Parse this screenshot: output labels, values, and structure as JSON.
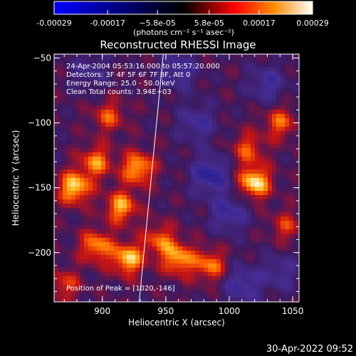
{
  "chart_data": {
    "type": "heatmap",
    "title": "Reconstructed RHESSI Image",
    "xlabel": "Heliocentric X (arcsec)",
    "ylabel": "Heliocentric Y (arcsec)",
    "xlim": [
      862,
      1055
    ],
    "ylim": [
      -238,
      -47
    ],
    "x_ticks": [
      900,
      950,
      1000,
      1050
    ],
    "y_ticks": [
      -50,
      -100,
      -150,
      -200
    ],
    "x_tick_labels": [
      "900",
      "950",
      "1000",
      "1050"
    ],
    "y_tick_labels": [
      "−50",
      "−100",
      "−150",
      "−200"
    ],
    "colorbar": {
      "ticks": [
        -0.00029,
        -0.00017,
        -5.8e-05,
        5.8e-05,
        0.00017,
        0.00029
      ],
      "tick_labels": [
        "-0.00029",
        "-0.00017",
        "−5.8e-05",
        "5.8e-05",
        "0.00017",
        "0.00029"
      ],
      "unit_label": "(photons cm⁻² s⁻¹ asec⁻²)",
      "colors": [
        "#0000ff",
        "#ff0000",
        "#ff8c00",
        "#ffffff"
      ]
    },
    "annotations": [
      "24-Apr-2004 05:53:16.000 to 05:57:20.000",
      "Detectors: 3F 4F 5F 6F 7F 8F, Att 0",
      "Energy Range: 25.0 - 50.0 keV",
      "Clean     Total counts: 3.94E+03"
    ],
    "peak_label": "Position of Peak = [1020,-146]",
    "peak": [
      1020,
      -146
    ],
    "limb_line": [
      [
        929,
        -238
      ],
      [
        948,
        -47
      ]
    ],
    "hot_spots": [
      {
        "x": 878,
        "y": -150,
        "intensity": 0.95
      },
      {
        "x": 895,
        "y": -130,
        "intensity": 0.7
      },
      {
        "x": 905,
        "y": -95,
        "intensity": 0.55
      },
      {
        "x": 915,
        "y": -165,
        "intensity": 0.8
      },
      {
        "x": 928,
        "y": -135,
        "intensity": 0.85
      },
      {
        "x": 895,
        "y": -195,
        "intensity": 0.75
      },
      {
        "x": 920,
        "y": -205,
        "intensity": 0.9
      },
      {
        "x": 945,
        "y": -190,
        "intensity": 0.6
      },
      {
        "x": 960,
        "y": -205,
        "intensity": 0.8
      },
      {
        "x": 985,
        "y": -210,
        "intensity": 0.7
      },
      {
        "x": 1020,
        "y": -146,
        "intensity": 1.0
      },
      {
        "x": 1015,
        "y": -120,
        "intensity": 0.55
      },
      {
        "x": 1040,
        "y": -100,
        "intensity": 0.6
      },
      {
        "x": 870,
        "y": -225,
        "intensity": 0.5
      },
      {
        "x": 1045,
        "y": -180,
        "intensity": 0.45
      }
    ],
    "cold_spots": [
      {
        "x": 985,
        "y": -140,
        "intensity": 1.0
      },
      {
        "x": 1000,
        "y": -170,
        "intensity": 0.8
      },
      {
        "x": 975,
        "y": -100,
        "intensity": 0.7
      },
      {
        "x": 1030,
        "y": -70,
        "intensity": 0.7
      },
      {
        "x": 960,
        "y": -60,
        "intensity": 0.7
      },
      {
        "x": 1010,
        "y": -225,
        "intensity": 0.8
      },
      {
        "x": 890,
        "y": -60,
        "intensity": 0.5
      },
      {
        "x": 1040,
        "y": -215,
        "intensity": 0.6
      }
    ]
  },
  "footer": {
    "timestamp": "30-Apr-2022 09:52"
  }
}
